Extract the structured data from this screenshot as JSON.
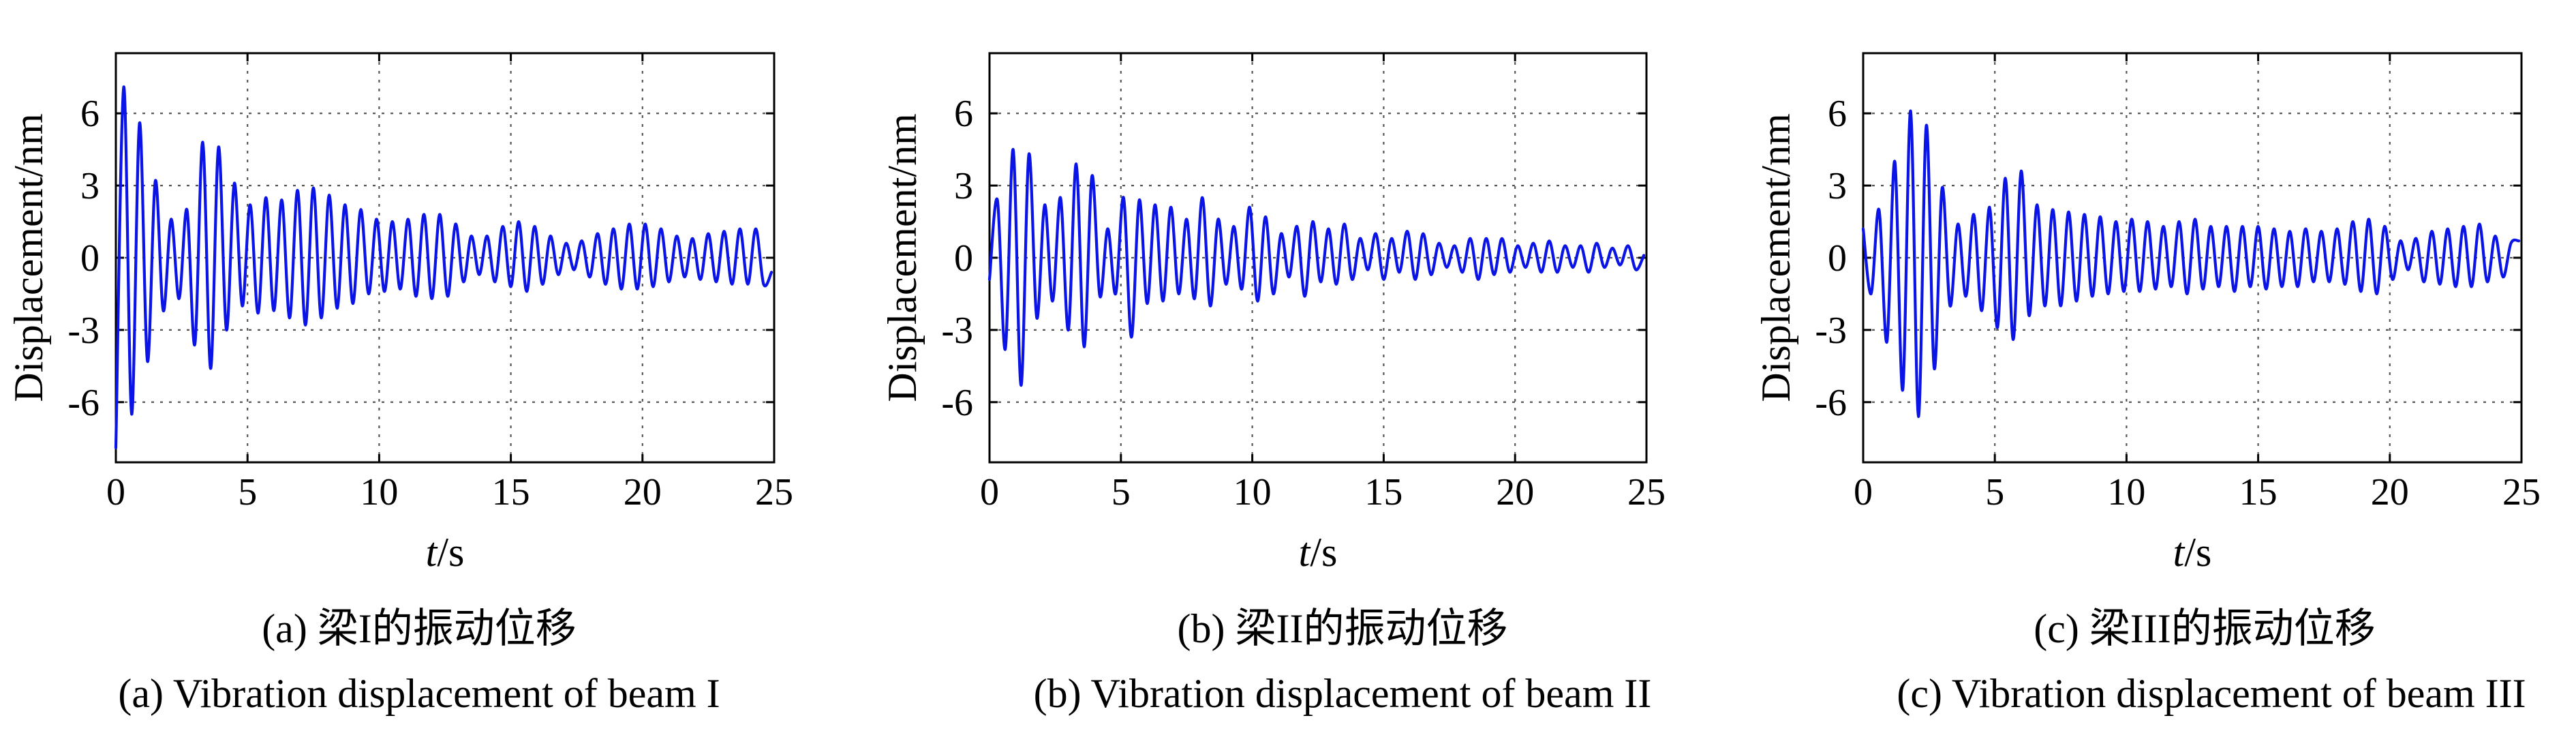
{
  "figure": {
    "chart_color": "#0a14e6"
  },
  "chart_data": [
    {
      "type": "line",
      "id": "a",
      "title": "",
      "xlabel_italic": "t",
      "xlabel_unit": "/s",
      "ylabel": "Displacement/nm",
      "xlim": [
        0,
        25
      ],
      "ylim": [
        -8.5,
        8.5
      ],
      "xticks": [
        0,
        5,
        10,
        15,
        20,
        25
      ],
      "yticks": [
        -6,
        -3,
        0,
        3,
        6
      ],
      "grid": true,
      "caption_zh": "(a) 梁I的振动位移",
      "caption_en": "(a) Vibration displacement of beam I",
      "series": [
        {
          "name": "displacement",
          "x": [
            0.0,
            0.3,
            0.6,
            0.9,
            1.2,
            1.5,
            1.8,
            2.1,
            2.4,
            2.7,
            3.0,
            3.3,
            3.6,
            3.9,
            4.2,
            4.5,
            4.8,
            5.1,
            5.4,
            5.7,
            6.0,
            6.3,
            6.6,
            6.9,
            7.2,
            7.5,
            7.8,
            8.1,
            8.4,
            8.7,
            9.0,
            9.3,
            9.6,
            9.9,
            10.2,
            10.5,
            10.8,
            11.1,
            11.4,
            11.7,
            12.0,
            12.3,
            12.6,
            12.9,
            13.2,
            13.5,
            13.8,
            14.1,
            14.4,
            14.7,
            15.0,
            15.3,
            15.6,
            15.9,
            16.2,
            16.5,
            16.8,
            17.1,
            17.4,
            17.7,
            18.0,
            18.3,
            18.6,
            18.9,
            19.2,
            19.5,
            19.8,
            20.1,
            20.4,
            20.7,
            21.0,
            21.3,
            21.6,
            21.9,
            22.2,
            22.5,
            22.8,
            23.1,
            23.4,
            23.7,
            24.0,
            24.3,
            24.6,
            24.9
          ],
          "y": [
            -7.9,
            7.1,
            -6.5,
            5.6,
            -4.3,
            3.2,
            -2.2,
            1.6,
            -1.7,
            2.0,
            -3.6,
            4.8,
            -4.6,
            4.6,
            -3.0,
            3.1,
            -2.0,
            2.2,
            -2.3,
            2.5,
            -2.2,
            2.4,
            -2.5,
            2.8,
            -2.8,
            2.9,
            -2.5,
            2.6,
            -2.1,
            2.2,
            -1.9,
            2.0,
            -1.5,
            1.6,
            -1.4,
            1.5,
            -1.3,
            1.6,
            -1.6,
            1.8,
            -1.7,
            1.8,
            -1.6,
            1.4,
            -1.0,
            0.9,
            -0.7,
            0.9,
            -1.0,
            1.3,
            -1.2,
            1.5,
            -1.4,
            1.3,
            -1.1,
            0.9,
            -0.7,
            0.6,
            -0.5,
            0.7,
            -0.8,
            1.0,
            -1.1,
            1.2,
            -1.3,
            1.4,
            -1.3,
            1.4,
            -1.2,
            1.2,
            -1.0,
            0.9,
            -0.8,
            0.8,
            -0.9,
            1.0,
            -1.0,
            1.1,
            -1.1,
            1.2,
            -1.1,
            1.2,
            -1.1,
            -0.6
          ]
        }
      ]
    },
    {
      "type": "line",
      "id": "b",
      "title": "",
      "xlabel_italic": "t",
      "xlabel_unit": "/s",
      "ylabel": "Displacement/nm",
      "xlim": [
        0,
        25
      ],
      "ylim": [
        -8.5,
        8.5
      ],
      "xticks": [
        0,
        5,
        10,
        15,
        20,
        25
      ],
      "yticks": [
        -6,
        -3,
        0,
        3,
        6
      ],
      "grid": true,
      "caption_zh": "(b) 梁II的振动位移",
      "caption_en": "(b) Vibration displacement of beam II",
      "series": [
        {
          "name": "displacement",
          "x": [
            0.0,
            0.3,
            0.6,
            0.9,
            1.2,
            1.5,
            1.8,
            2.1,
            2.4,
            2.7,
            3.0,
            3.3,
            3.6,
            3.9,
            4.2,
            4.5,
            4.8,
            5.1,
            5.4,
            5.7,
            6.0,
            6.3,
            6.6,
            6.9,
            7.2,
            7.5,
            7.8,
            8.1,
            8.4,
            8.7,
            9.0,
            9.3,
            9.6,
            9.9,
            10.2,
            10.5,
            10.8,
            11.1,
            11.4,
            11.7,
            12.0,
            12.3,
            12.6,
            12.9,
            13.2,
            13.5,
            13.8,
            14.1,
            14.4,
            14.7,
            15.0,
            15.3,
            15.6,
            15.9,
            16.2,
            16.5,
            16.8,
            17.1,
            17.4,
            17.7,
            18.0,
            18.3,
            18.6,
            18.9,
            19.2,
            19.5,
            19.8,
            20.1,
            20.4,
            20.7,
            21.0,
            21.3,
            21.6,
            21.9,
            22.2,
            22.5,
            22.8,
            23.1,
            23.4,
            23.7,
            24.0,
            24.3,
            24.6,
            24.9
          ],
          "y": [
            -0.9,
            2.4,
            -3.8,
            4.5,
            -5.3,
            4.3,
            -2.5,
            2.2,
            -1.8,
            2.5,
            -3.0,
            3.9,
            -3.7,
            3.4,
            -1.6,
            1.2,
            -1.5,
            2.5,
            -3.3,
            2.4,
            -1.9,
            2.2,
            -1.8,
            2.1,
            -1.5,
            1.6,
            -1.7,
            2.5,
            -2.0,
            1.6,
            -1.1,
            1.3,
            -1.3,
            2.1,
            -1.8,
            1.7,
            -1.5,
            1.0,
            -0.8,
            1.3,
            -1.6,
            1.5,
            -1.0,
            1.2,
            -1.1,
            1.4,
            -0.9,
            0.8,
            -0.5,
            1.0,
            -0.9,
            0.8,
            -0.6,
            1.1,
            -0.9,
            1.0,
            -0.7,
            0.6,
            -0.4,
            0.5,
            -0.6,
            0.8,
            -0.9,
            0.8,
            -0.7,
            0.8,
            -0.6,
            0.5,
            -0.4,
            0.6,
            -0.6,
            0.7,
            -0.6,
            0.5,
            -0.4,
            0.5,
            -0.6,
            0.6,
            -0.4,
            0.4,
            -0.3,
            0.5,
            -0.5,
            0.1
          ]
        }
      ]
    },
    {
      "type": "line",
      "id": "c",
      "title": "",
      "xlabel_italic": "t",
      "xlabel_unit": "/s",
      "ylabel": "Displacement/nm",
      "xlim": [
        0,
        25
      ],
      "ylim": [
        -8.5,
        8.5
      ],
      "xticks": [
        0,
        5,
        10,
        15,
        20,
        25
      ],
      "yticks": [
        -6,
        -3,
        0,
        3,
        6
      ],
      "grid": true,
      "caption_zh": "(c) 梁III的振动位移",
      "caption_en": "(c) Vibration displacement of beam III",
      "series": [
        {
          "name": "displacement",
          "x": [
            0.0,
            0.3,
            0.6,
            0.9,
            1.2,
            1.5,
            1.8,
            2.1,
            2.4,
            2.7,
            3.0,
            3.3,
            3.6,
            3.9,
            4.2,
            4.5,
            4.8,
            5.1,
            5.4,
            5.7,
            6.0,
            6.3,
            6.6,
            6.9,
            7.2,
            7.5,
            7.8,
            8.1,
            8.4,
            8.7,
            9.0,
            9.3,
            9.6,
            9.9,
            10.2,
            10.5,
            10.8,
            11.1,
            11.4,
            11.7,
            12.0,
            12.3,
            12.6,
            12.9,
            13.2,
            13.5,
            13.8,
            14.1,
            14.4,
            14.7,
            15.0,
            15.3,
            15.6,
            15.9,
            16.2,
            16.5,
            16.8,
            17.1,
            17.4,
            17.7,
            18.0,
            18.3,
            18.6,
            18.9,
            19.2,
            19.5,
            19.8,
            20.1,
            20.4,
            20.7,
            21.0,
            21.3,
            21.6,
            21.9,
            22.2,
            22.5,
            22.8,
            23.1,
            23.4,
            23.7,
            24.0,
            24.3,
            24.6,
            24.9
          ],
          "y": [
            1.2,
            -1.5,
            2.0,
            -3.5,
            4.0,
            -5.5,
            6.1,
            -6.6,
            5.5,
            -4.6,
            2.9,
            -2.0,
            1.4,
            -1.6,
            1.8,
            -2.2,
            2.1,
            -2.9,
            3.3,
            -3.4,
            3.6,
            -2.4,
            2.2,
            -2.0,
            2.0,
            -2.0,
            1.9,
            -1.8,
            1.8,
            -1.6,
            1.7,
            -1.5,
            1.5,
            -1.4,
            1.6,
            -1.4,
            1.5,
            -1.3,
            1.3,
            -1.2,
            1.5,
            -1.5,
            1.6,
            -1.3,
            1.3,
            -1.2,
            1.3,
            -1.4,
            1.3,
            -1.2,
            1.3,
            -1.3,
            1.2,
            -1.2,
            1.1,
            -1.2,
            1.2,
            -1.0,
            1.1,
            -1.0,
            1.2,
            -1.1,
            1.5,
            -1.4,
            1.6,
            -1.5,
            1.3,
            -0.9,
            0.7,
            -0.5,
            0.8,
            -1.0,
            1.1,
            -1.1,
            1.2,
            -1.2,
            1.3,
            -1.2,
            1.4,
            -1.0,
            0.9,
            -0.8,
            0.6,
            0.7
          ]
        }
      ]
    }
  ]
}
